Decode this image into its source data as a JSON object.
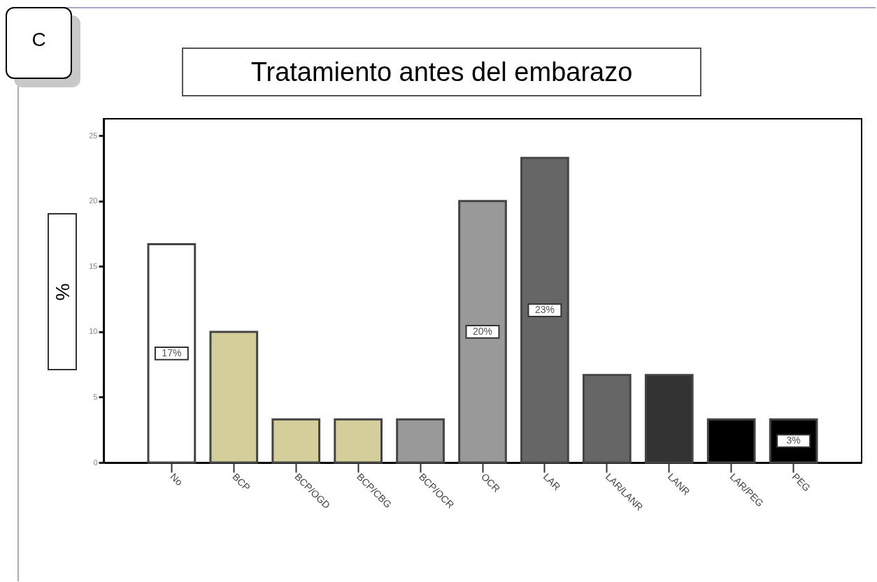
{
  "chart_data": {
    "type": "bar",
    "title": "Tratamiento antes del embarazo",
    "ylabel": "%",
    "annotations": [
      "C"
    ],
    "categories": [
      "No",
      "BCP",
      "BCP/OGD",
      "BCP/CBG",
      "BCP/OCR",
      "OCR",
      "LAR",
      "LAR/LANR",
      "LANR",
      "LAR/PEG",
      "PEG"
    ],
    "values": [
      16.7,
      10,
      3.3,
      3.3,
      3.3,
      20,
      23.3,
      6.7,
      6.7,
      3.3,
      3.3
    ],
    "colors": [
      "#ffffff",
      "#d4cf9a",
      "#d4cf9a",
      "#d4cf9a",
      "#999999",
      "#999999",
      "#666666",
      "#666666",
      "#333333",
      "#000000",
      "#000000"
    ],
    "value_labels": [
      "17%",
      null,
      null,
      null,
      null,
      "20%",
      "23%",
      null,
      null,
      null,
      "3%"
    ],
    "ylim": [
      0,
      26.3
    ],
    "yticks": [
      0,
      5,
      10,
      15,
      20,
      25
    ],
    "grid": false
  }
}
